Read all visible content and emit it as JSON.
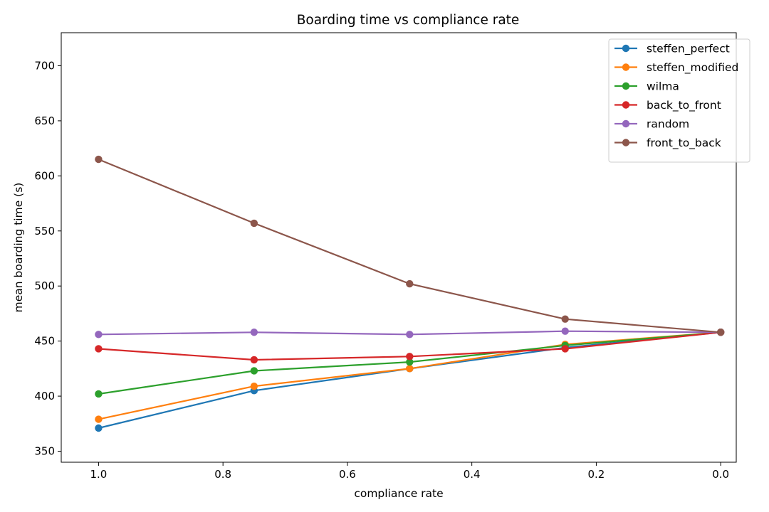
{
  "chart_data": {
    "type": "line",
    "title": "Boarding time vs compliance rate",
    "xlabel": "compliance rate",
    "ylabel": "mean boarding time (s)",
    "x": [
      1.0,
      0.75,
      0.5,
      0.25,
      0.0
    ],
    "x_inverted": true,
    "xlim": [
      1.06,
      -0.025
    ],
    "ylim": [
      340,
      730
    ],
    "x_ticks": [
      1.0,
      0.8,
      0.6,
      0.4,
      0.2,
      0.0
    ],
    "x_tick_labels": [
      "1.0",
      "0.8",
      "0.6",
      "0.4",
      "0.2",
      "0.0"
    ],
    "y_ticks": [
      350,
      400,
      450,
      500,
      550,
      600,
      650,
      700
    ],
    "y_tick_labels": [
      "350",
      "400",
      "450",
      "500",
      "550",
      "600",
      "650",
      "700"
    ],
    "grid": false,
    "legend_position": "top-right",
    "series": [
      {
        "name": "steffen_perfect",
        "color": "#1f77b4",
        "values": [
          371,
          405,
          425,
          444,
          458
        ]
      },
      {
        "name": "steffen_modified",
        "color": "#ff7f0e",
        "values": [
          379,
          409,
          425,
          447,
          458
        ]
      },
      {
        "name": "wilma",
        "color": "#2ca02c",
        "values": [
          402,
          423,
          431,
          446,
          458
        ]
      },
      {
        "name": "back_to_front",
        "color": "#d62728",
        "values": [
          443,
          433,
          436,
          443,
          458
        ]
      },
      {
        "name": "random",
        "color": "#9467bd",
        "values": [
          456,
          458,
          456,
          459,
          458
        ]
      },
      {
        "name": "front_to_back",
        "color": "#8c564b",
        "values": [
          615,
          557,
          502,
          470,
          458
        ]
      }
    ]
  }
}
